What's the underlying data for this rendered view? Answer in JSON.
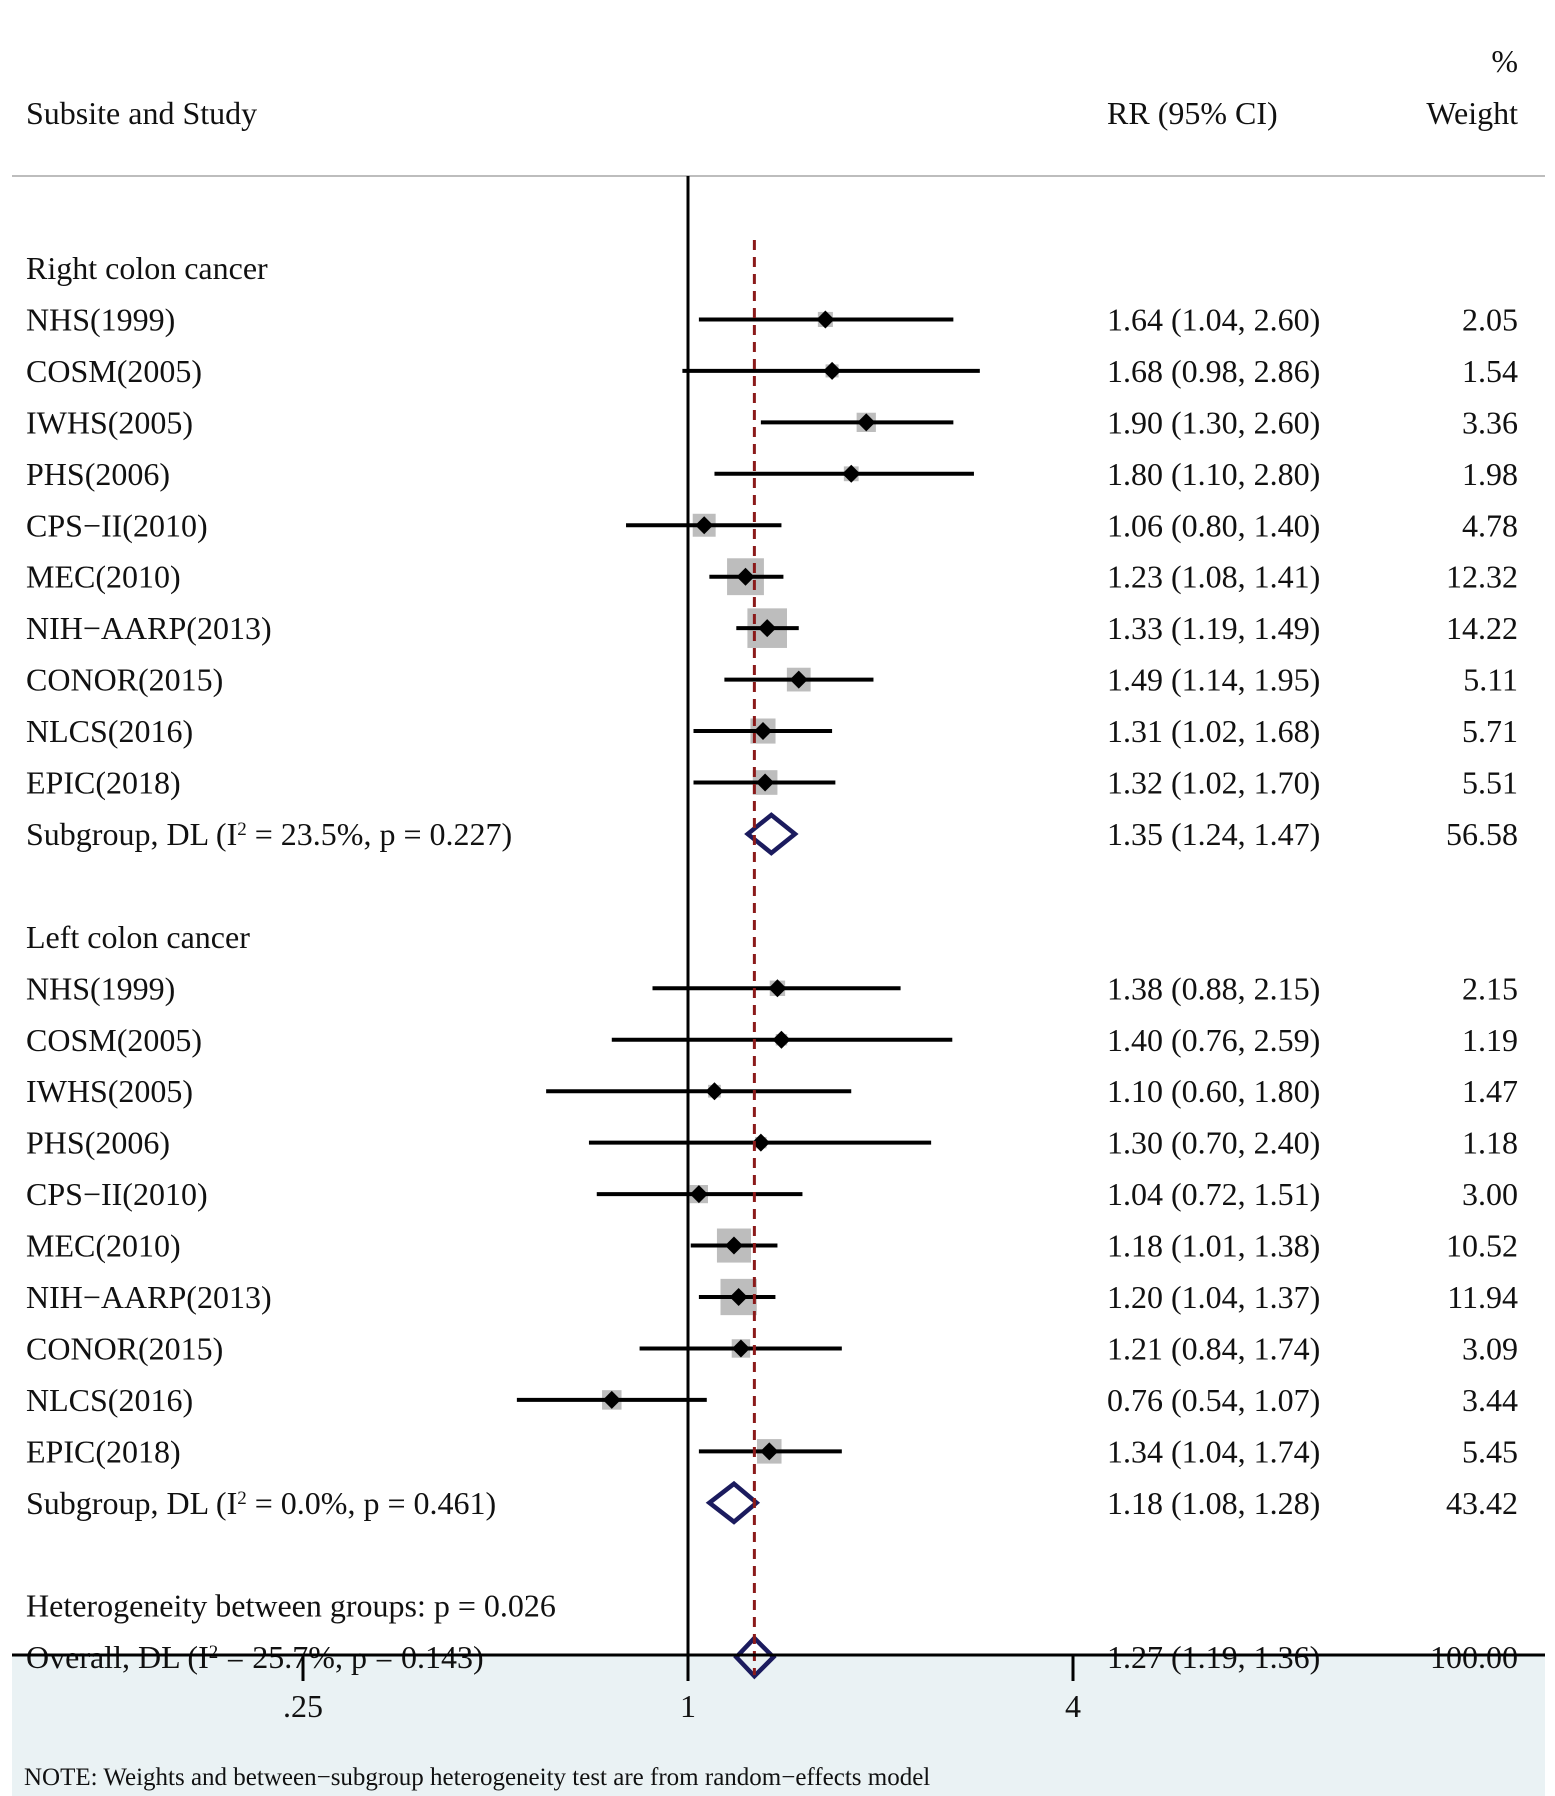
{
  "chart_data": {
    "type": "forest",
    "x_scale": "log2",
    "header": {
      "study_col": "Subsite and Study",
      "rr_col": "RR (95% CI)",
      "weight_col_line1": "%",
      "weight_col_line2": "Weight"
    },
    "groups": [
      {
        "name": "Right colon cancer",
        "studies": [
          {
            "study": "NHS(1999)",
            "rr": 1.64,
            "lo": 1.04,
            "hi": 2.6,
            "label": "1.64 (1.04, 2.60)",
            "weight": "2.05"
          },
          {
            "study": "COSM(2005)",
            "rr": 1.68,
            "lo": 0.98,
            "hi": 2.86,
            "label": "1.68 (0.98, 2.86)",
            "weight": "1.54"
          },
          {
            "study": "IWHS(2005)",
            "rr": 1.9,
            "lo": 1.3,
            "hi": 2.6,
            "label": "1.90 (1.30, 2.60)",
            "weight": "3.36"
          },
          {
            "study": "PHS(2006)",
            "rr": 1.8,
            "lo": 1.1,
            "hi": 2.8,
            "label": "1.80 (1.10, 2.80)",
            "weight": "1.98"
          },
          {
            "study": "CPS−II(2010)",
            "rr": 1.06,
            "lo": 0.8,
            "hi": 1.4,
            "label": "1.06 (0.80, 1.40)",
            "weight": "4.78"
          },
          {
            "study": "MEC(2010)",
            "rr": 1.23,
            "lo": 1.08,
            "hi": 1.41,
            "label": "1.23 (1.08, 1.41)",
            "weight": "12.32"
          },
          {
            "study": "NIH−AARP(2013)",
            "rr": 1.33,
            "lo": 1.19,
            "hi": 1.49,
            "label": "1.33 (1.19, 1.49)",
            "weight": "14.22"
          },
          {
            "study": "CONOR(2015)",
            "rr": 1.49,
            "lo": 1.14,
            "hi": 1.95,
            "label": "1.49 (1.14, 1.95)",
            "weight": "5.11"
          },
          {
            "study": "NLCS(2016)",
            "rr": 1.31,
            "lo": 1.02,
            "hi": 1.68,
            "label": "1.31 (1.02, 1.68)",
            "weight": "5.71"
          },
          {
            "study": "EPIC(2018)",
            "rr": 1.32,
            "lo": 1.02,
            "hi": 1.7,
            "label": "1.32 (1.02, 1.70)",
            "weight": "5.51"
          }
        ],
        "subgroup": {
          "prefix": "Subgroup, DL (I",
          "suffix": " = 23.5%, p = 0.227)",
          "rr": 1.35,
          "lo": 1.24,
          "hi": 1.47,
          "label": "1.35 (1.24, 1.47)",
          "weight": "56.58"
        }
      },
      {
        "name": "Left colon cancer",
        "studies": [
          {
            "study": "NHS(1999)",
            "rr": 1.38,
            "lo": 0.88,
            "hi": 2.15,
            "label": "1.38 (0.88, 2.15)",
            "weight": "2.15"
          },
          {
            "study": "COSM(2005)",
            "rr": 1.4,
            "lo": 0.76,
            "hi": 2.59,
            "label": "1.40 (0.76, 2.59)",
            "weight": "1.19"
          },
          {
            "study": "IWHS(2005)",
            "rr": 1.1,
            "lo": 0.6,
            "hi": 1.8,
            "label": "1.10 (0.60, 1.80)",
            "weight": "1.47"
          },
          {
            "study": "PHS(2006)",
            "rr": 1.3,
            "lo": 0.7,
            "hi": 2.4,
            "label": "1.30 (0.70, 2.40)",
            "weight": "1.18"
          },
          {
            "study": "CPS−II(2010)",
            "rr": 1.04,
            "lo": 0.72,
            "hi": 1.51,
            "label": "1.04 (0.72, 1.51)",
            "weight": "3.00"
          },
          {
            "study": "MEC(2010)",
            "rr": 1.18,
            "lo": 1.01,
            "hi": 1.38,
            "label": "1.18 (1.01, 1.38)",
            "weight": "10.52"
          },
          {
            "study": "NIH−AARP(2013)",
            "rr": 1.2,
            "lo": 1.04,
            "hi": 1.37,
            "label": "1.20 (1.04, 1.37)",
            "weight": "11.94"
          },
          {
            "study": "CONOR(2015)",
            "rr": 1.21,
            "lo": 0.84,
            "hi": 1.74,
            "label": "1.21 (0.84, 1.74)",
            "weight": "3.09"
          },
          {
            "study": "NLCS(2016)",
            "rr": 0.76,
            "lo": 0.54,
            "hi": 1.07,
            "label": "0.76 (0.54, 1.07)",
            "weight": "3.44"
          },
          {
            "study": "EPIC(2018)",
            "rr": 1.34,
            "lo": 1.04,
            "hi": 1.74,
            "label": "1.34 (1.04, 1.74)",
            "weight": "5.45"
          }
        ],
        "subgroup": {
          "prefix": "Subgroup, DL (I",
          "suffix": " = 0.0%, p = 0.461)",
          "rr": 1.18,
          "lo": 1.08,
          "hi": 1.28,
          "label": "1.18 (1.08, 1.28)",
          "weight": "43.42"
        }
      }
    ],
    "heterogeneity_text": "Heterogeneity between groups: p = 0.026",
    "overall": {
      "prefix": "Overall, DL (I",
      "suffix": " = 25.7%, p = 0.143)",
      "rr": 1.27,
      "lo": 1.19,
      "hi": 1.36,
      "label": "1.27 (1.19, 1.36)",
      "weight": "100.00"
    },
    "superscript": "2",
    "ticks": [
      {
        "value": 0.25,
        "label": ".25"
      },
      {
        "value": 1,
        "label": "1"
      },
      {
        "value": 4,
        "label": "4"
      }
    ],
    "null_value": 1,
    "overall_line_value": 1.27,
    "note": "NOTE: Weights and between−subgroup heterogeneity test are from random−effects model",
    "colors": {
      "ci_line": "#000000",
      "weight_box": "#bdbdbd",
      "point": "#000000",
      "diamond": "#1b1b5e",
      "overall_line": "#8b1a1a",
      "axis": "#000000",
      "footer_bg": "#eaf2f4",
      "separator": "#bdbdbd"
    }
  }
}
